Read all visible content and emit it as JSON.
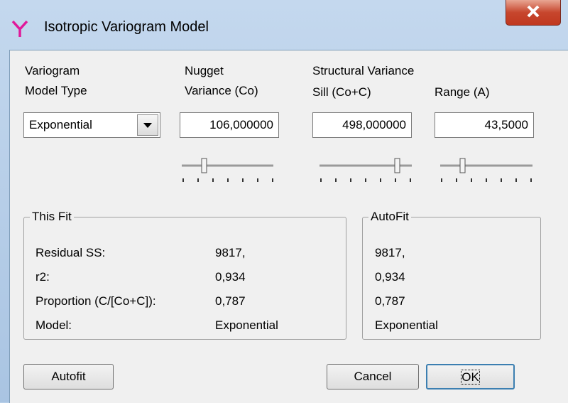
{
  "window": {
    "title": "Isotropic Variogram Model"
  },
  "model_type": {
    "label_line1": "Variogram",
    "label_line2": "Model Type",
    "value": "Exponential"
  },
  "nugget": {
    "label_line1": "Nugget",
    "label_line2": "Variance (Co)",
    "value": "106,000000"
  },
  "structural": {
    "label": "Structural Variance",
    "sill": {
      "label": "Sill (Co+C)",
      "value": "498,000000"
    },
    "range": {
      "label": "Range (A)",
      "value": "43,5000"
    }
  },
  "this_fit": {
    "title": "This Fit",
    "rows": [
      [
        "Residual SS:",
        "9817,"
      ],
      [
        "r2:",
        "0,934"
      ],
      [
        "Proportion (C/[Co+C]):",
        "0,787"
      ],
      [
        "Model:",
        "Exponential"
      ]
    ]
  },
  "autofit": {
    "title": "AutoFit",
    "values": [
      "9817,",
      "0,934",
      "0,787",
      "Exponential"
    ]
  },
  "buttons": {
    "autofit": "Autofit",
    "cancel": "Cancel",
    "ok": "OK"
  }
}
